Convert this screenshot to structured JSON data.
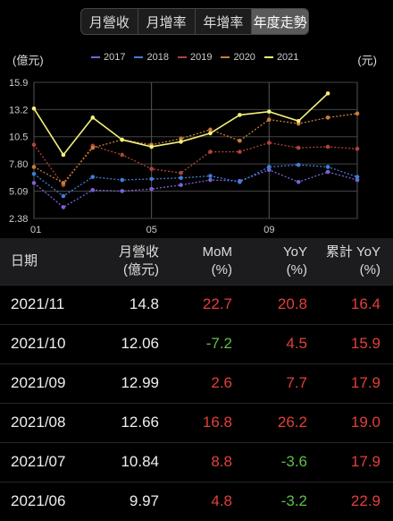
{
  "tabs": [
    {
      "label": "月營收",
      "active": false
    },
    {
      "label": "月增率",
      "active": false
    },
    {
      "label": "年增率",
      "active": false
    },
    {
      "label": "年度走勢",
      "active": true
    }
  ],
  "chart_meta": {
    "unit_left": "(億元)",
    "unit_right": "(元)"
  },
  "chart_data": {
    "type": "line",
    "x": [
      "01",
      "02",
      "03",
      "04",
      "05",
      "06",
      "07",
      "08",
      "09",
      "10",
      "11",
      "12"
    ],
    "xticks": [
      "01",
      "05",
      "09"
    ],
    "yticks": [
      "15.9",
      "13.2",
      "10.5",
      "7.80",
      "5.09",
      "2.38"
    ],
    "ylim": [
      2.38,
      15.9
    ],
    "series": [
      {
        "name": "2017",
        "color": "#7b62d6",
        "values": [
          5.9,
          3.5,
          5.2,
          5.1,
          5.3,
          5.7,
          6.2,
          6.1,
          7.2,
          6.0,
          7.0,
          6.2
        ]
      },
      {
        "name": "2018",
        "color": "#3f7fd9",
        "values": [
          6.8,
          4.6,
          6.5,
          6.2,
          6.3,
          6.4,
          6.6,
          6.0,
          7.5,
          7.7,
          7.5,
          6.5
        ]
      },
      {
        "name": "2019",
        "color": "#b0433c",
        "values": [
          9.7,
          5.7,
          9.6,
          8.7,
          7.3,
          6.9,
          9.0,
          9.0,
          9.9,
          9.4,
          9.5,
          9.3
        ]
      },
      {
        "name": "2020",
        "color": "#c87e3a",
        "values": [
          7.5,
          5.9,
          9.4,
          10.2,
          9.7,
          10.3,
          11.2,
          10.1,
          12.2,
          11.8,
          12.4,
          12.8
        ]
      },
      {
        "name": "2021",
        "color": "#f3ef7a",
        "values": [
          13.3,
          8.7,
          12.4,
          10.2,
          9.5,
          10.0,
          10.84,
          12.66,
          12.99,
          12.06,
          14.8,
          null
        ]
      }
    ]
  },
  "table": {
    "headers": {
      "date": "日期",
      "rev_line1": "月營收",
      "rev_line2": "(億元)",
      "mom_line1": "MoM",
      "mom_line2": "(%)",
      "yoy_line1": "YoY",
      "yoy_line2": "(%)",
      "cum_line1": "累計 YoY",
      "cum_line2": "(%)"
    },
    "rows": [
      {
        "date": "2021/11",
        "rev": "14.8",
        "mom": "22.7",
        "mom_color": "red",
        "yoy": "20.8",
        "yoy_color": "red",
        "cum": "16.4",
        "cum_color": "red"
      },
      {
        "date": "2021/10",
        "rev": "12.06",
        "mom": "-7.2",
        "mom_color": "green",
        "yoy": "4.5",
        "yoy_color": "red",
        "cum": "15.9",
        "cum_color": "red"
      },
      {
        "date": "2021/09",
        "rev": "12.99",
        "mom": "2.6",
        "mom_color": "red",
        "yoy": "7.7",
        "yoy_color": "red",
        "cum": "17.9",
        "cum_color": "red"
      },
      {
        "date": "2021/08",
        "rev": "12.66",
        "mom": "16.8",
        "mom_color": "red",
        "yoy": "26.2",
        "yoy_color": "red",
        "cum": "19.0",
        "cum_color": "red"
      },
      {
        "date": "2021/07",
        "rev": "10.84",
        "mom": "8.8",
        "mom_color": "red",
        "yoy": "-3.6",
        "yoy_color": "green",
        "cum": "17.9",
        "cum_color": "red"
      },
      {
        "date": "2021/06",
        "rev": "9.97",
        "mom": "4.8",
        "mom_color": "red",
        "yoy": "-3.2",
        "yoy_color": "green",
        "cum": "22.9",
        "cum_color": "red"
      }
    ]
  }
}
